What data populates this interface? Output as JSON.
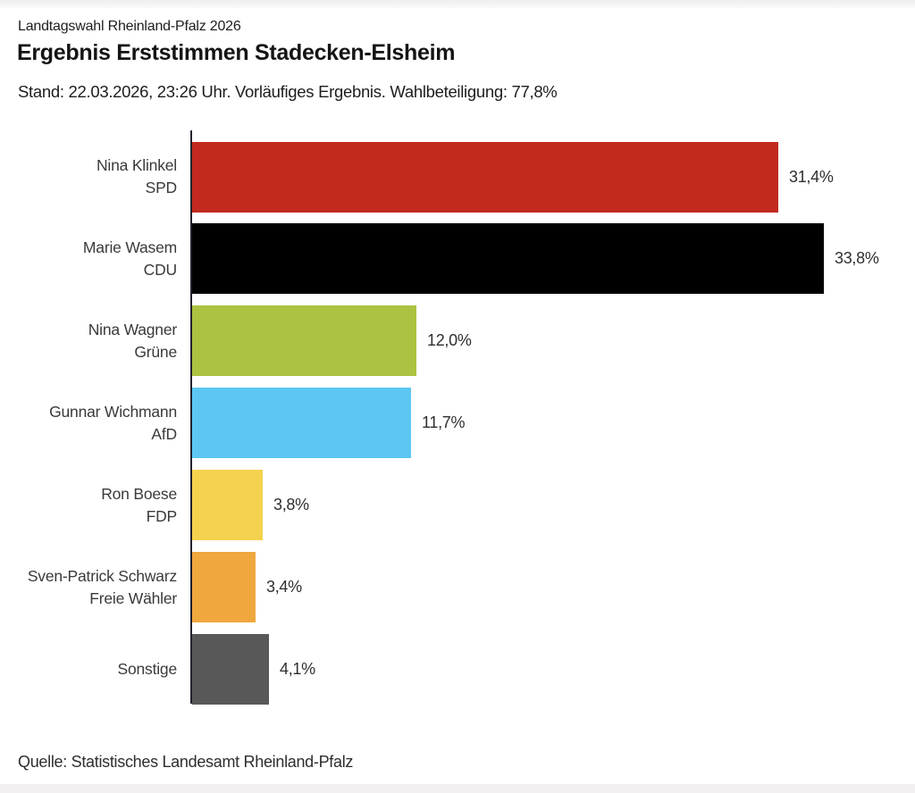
{
  "header": {
    "kicker": "Landtagswahl Rheinland-Pfalz 2026",
    "title": "Ergebnis Erststimmen Stadecken-Elsheim",
    "subtitle": "Stand: 22.03.2026, 23:26 Uhr. Vorläufiges Ergebnis. Wahlbeteiligung: 77,8%"
  },
  "chart_data": {
    "type": "bar",
    "orientation": "horizontal",
    "title": "Ergebnis Erststimmen Stadecken-Elsheim",
    "xlabel": "",
    "ylabel": "",
    "xlim": [
      0,
      38.7
    ],
    "grid": false,
    "legend": "none",
    "value_format": "german-decimal-comma, suffix %",
    "bars": [
      {
        "candidate": "Nina Klinkel",
        "party": "SPD",
        "value": 31.4,
        "value_label": "31,4%",
        "color": "#c2291f"
      },
      {
        "candidate": "Marie Wasem",
        "party": "CDU",
        "value": 33.8,
        "value_label": "33,8%",
        "color": "#000000"
      },
      {
        "candidate": "Nina Wagner",
        "party": "Grüne",
        "value": 12.0,
        "value_label": "12,0%",
        "color": "#abc340"
      },
      {
        "candidate": "Gunnar Wichmann",
        "party": "AfD",
        "value": 11.7,
        "value_label": "11,7%",
        "color": "#5cc7f3"
      },
      {
        "candidate": "Ron Boese",
        "party": "FDP",
        "value": 3.8,
        "value_label": "3,8%",
        "color": "#f5d24e"
      },
      {
        "candidate": "Sven-Patrick Schwarz",
        "party": "Freie Wähler",
        "value": 3.4,
        "value_label": "3,4%",
        "color": "#f0a73e"
      },
      {
        "candidate": "Sonstige",
        "party": "",
        "value": 4.1,
        "value_label": "4,1%",
        "color": "#585858"
      }
    ]
  },
  "footer": {
    "source": "Quelle: Statistisches Landesamt Rheinland-Pfalz"
  },
  "colors": {
    "axis": "#20222e",
    "text": "#1d1d1d",
    "label_text": "#3a3a3a",
    "background": "#ffffff"
  }
}
